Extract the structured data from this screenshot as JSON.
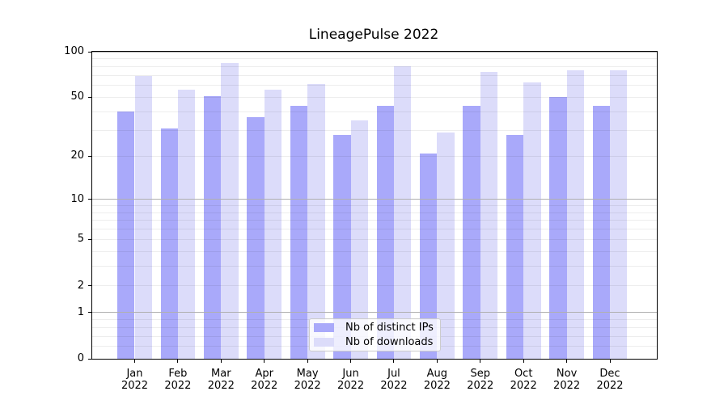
{
  "chart_data": {
    "type": "bar",
    "title": "LineagePulse 2022",
    "categories": [
      "Jan",
      "Feb",
      "Mar",
      "Apr",
      "May",
      "Jun",
      "Jul",
      "Aug",
      "Sep",
      "Oct",
      "Nov",
      "Dec"
    ],
    "category_sublabel": "2022",
    "series": [
      {
        "name": "Nb of distinct IPs",
        "color": "#a9a9fa",
        "values": [
          40,
          31,
          51,
          37,
          44,
          28,
          44,
          21,
          44,
          28,
          50,
          44
        ]
      },
      {
        "name": "Nb of downloads",
        "color": "#dcdcfa",
        "values": [
          69,
          56,
          84,
          56,
          61,
          35,
          80,
          29,
          74,
          63,
          75,
          75
        ]
      }
    ],
    "yscale": "log1p",
    "ylim": [
      0,
      100
    ],
    "y_ticks": [
      0,
      1,
      2,
      5,
      10,
      20,
      50,
      100
    ],
    "y_major_gridlines": [
      1,
      10,
      100
    ],
    "y_minor_gridlines": [
      0.2,
      0.4,
      0.6,
      0.8,
      2,
      3,
      4,
      5,
      6,
      7,
      8,
      9,
      20,
      30,
      40,
      50,
      60,
      70,
      80,
      90
    ],
    "grid": true,
    "legend_position": "lower center",
    "colors": {
      "major_grid": "#b0b0b0",
      "minor_grid": "rgba(0,0,0,0.07)",
      "spine": "#000000",
      "background": "#ffffff"
    }
  }
}
